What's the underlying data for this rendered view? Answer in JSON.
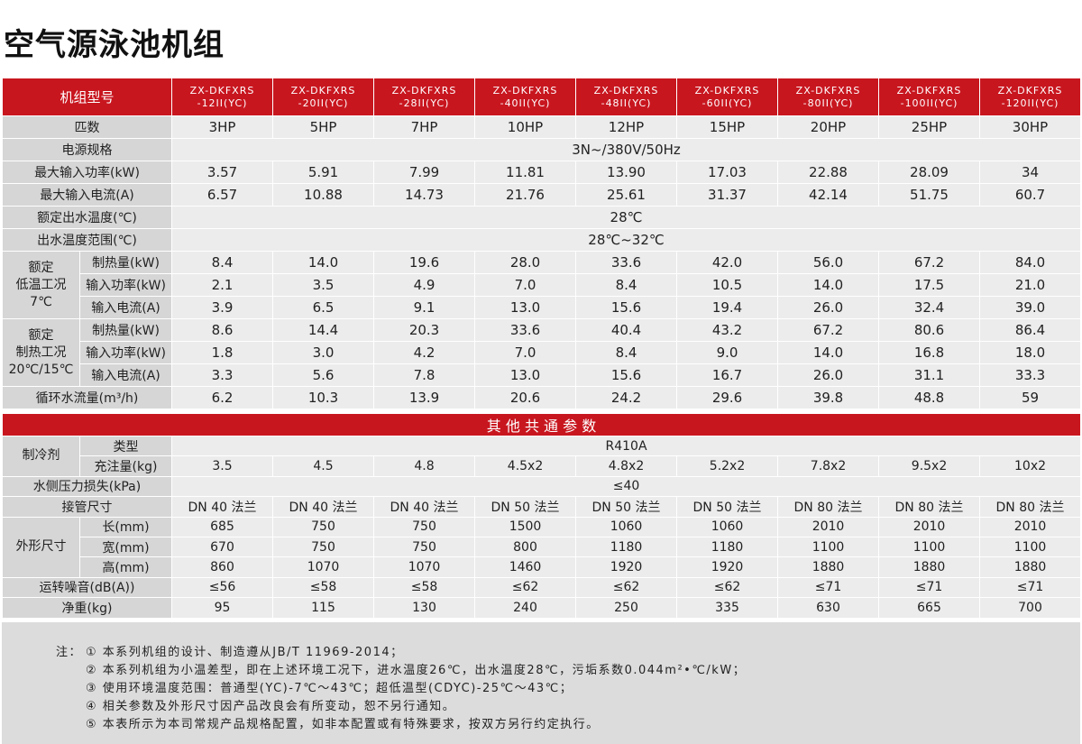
{
  "title": "空气源泳池机组",
  "table": {
    "header": {
      "label": "机组型号",
      "models": [
        [
          "ZX-DKFXRS",
          "-12II(YC)"
        ],
        [
          "ZX-DKFXRS",
          "-20II(YC)"
        ],
        [
          "ZX-DKFXRS",
          "-28II(YC)"
        ],
        [
          "ZX-DKFXRS",
          "-40II(YC)"
        ],
        [
          "ZX-DKFXRS",
          "-48II(YC)"
        ],
        [
          "ZX-DKFXRS",
          "-60II(YC)"
        ],
        [
          "ZX-DKFXRS",
          "-80II(YC)"
        ],
        [
          "ZX-DKFXRS",
          "-100II(YC)"
        ],
        [
          "ZX-DKFXRS",
          "-120II(YC)"
        ]
      ]
    },
    "rows": [
      {
        "label": "匹数",
        "values": [
          "3HP",
          "5HP",
          "7HP",
          "10HP",
          "12HP",
          "15HP",
          "20HP",
          "25HP",
          "30HP"
        ]
      },
      {
        "label": "电源规格",
        "value": "3N~/380V/50Hz"
      },
      {
        "label": "最大输入功率(kW)",
        "values": [
          "3.57",
          "5.91",
          "7.99",
          "11.81",
          "13.90",
          "17.03",
          "22.88",
          "28.09",
          "34"
        ]
      },
      {
        "label": "最大输入电流(A)",
        "values": [
          "6.57",
          "10.88",
          "14.73",
          "21.76",
          "25.61",
          "31.37",
          "42.14",
          "51.75",
          "60.7"
        ]
      },
      {
        "label": "额定出水温度(℃)",
        "value": "28℃"
      },
      {
        "label": "出水温度范围(℃)",
        "value": "28℃~32℃"
      },
      {
        "label": [
          "额定",
          "低温工况",
          "7℃"
        ],
        "rows": [
          {
            "label": "制热量(kW)",
            "values": [
              "8.4",
              "14.0",
              "19.6",
              "28.0",
              "33.6",
              "42.0",
              "56.0",
              "67.2",
              "84.0"
            ]
          },
          {
            "label": "输入功率(kW)",
            "values": [
              "2.1",
              "3.5",
              "4.9",
              "7.0",
              "8.4",
              "10.5",
              "14.0",
              "17.5",
              "21.0"
            ]
          },
          {
            "label": "输入电流(A)",
            "values": [
              "3.9",
              "6.5",
              "9.1",
              "13.0",
              "15.6",
              "19.4",
              "26.0",
              "32.4",
              "39.0"
            ]
          }
        ]
      },
      {
        "label": [
          "额定",
          "制热工况",
          "20℃/15℃"
        ],
        "rows": [
          {
            "label": "制热量(kW)",
            "values": [
              "8.6",
              "14.4",
              "20.3",
              "33.6",
              "40.4",
              "43.2",
              "67.2",
              "80.6",
              "86.4"
            ]
          },
          {
            "label": "输入功率(kW)",
            "values": [
              "1.8",
              "3.0",
              "4.2",
              "7.0",
              "8.4",
              "9.0",
              "14.0",
              "16.8",
              "18.0"
            ]
          },
          {
            "label": "输入电流(A)",
            "values": [
              "3.3",
              "5.6",
              "7.8",
              "13.0",
              "15.6",
              "16.7",
              "26.0",
              "31.1",
              "33.3"
            ]
          }
        ]
      },
      {
        "label": "循环水流量(m³/h)",
        "values": [
          "6.2",
          "10.3",
          "13.9",
          "20.6",
          "24.2",
          "29.6",
          "39.8",
          "48.8",
          "59"
        ]
      }
    ],
    "section_title": "其 他 共 通 参 数",
    "rows2": [
      {
        "label": [
          "制冷剂"
        ],
        "rows": [
          {
            "label": "类型",
            "value": "R410A"
          },
          {
            "label": "充注量(kg)",
            "values": [
              "3.5",
              "4.5",
              "4.8",
              "4.5x2",
              "4.8x2",
              "5.2x2",
              "7.8x2",
              "9.5x2",
              "10x2"
            ]
          }
        ]
      },
      {
        "label": "水侧压力损失(kPa)",
        "value": "≤40"
      },
      {
        "label": "接管尺寸",
        "values": [
          "DN 40 法兰",
          "DN 40 法兰",
          "DN 40 法兰",
          "DN 50 法兰",
          "DN 50 法兰",
          "DN 50 法兰",
          "DN 80 法兰",
          "DN 80 法兰",
          "DN 80 法兰"
        ]
      },
      {
        "label": [
          "外形尺寸"
        ],
        "rows": [
          {
            "label": "长(mm)",
            "values": [
              "685",
              "750",
              "750",
              "1500",
              "1060",
              "1060",
              "2010",
              "2010",
              "2010"
            ]
          },
          {
            "label": "宽(mm)",
            "values": [
              "670",
              "750",
              "750",
              "800",
              "1180",
              "1180",
              "1100",
              "1100",
              "1100"
            ]
          },
          {
            "label": "高(mm)",
            "values": [
              "860",
              "1070",
              "1070",
              "1460",
              "1920",
              "1920",
              "1880",
              "1880",
              "1880"
            ]
          }
        ]
      },
      {
        "label": "运转噪音(dB(A))",
        "values": [
          "≤56",
          "≤58",
          "≤58",
          "≤62",
          "≤62",
          "≤62",
          "≤71",
          "≤71",
          "≤71"
        ]
      },
      {
        "label": "净重(kg)",
        "values": [
          "95",
          "115",
          "130",
          "240",
          "250",
          "335",
          "630",
          "665",
          "700"
        ]
      }
    ]
  },
  "notes": {
    "label": "注：",
    "lines": [
      "① 本系列机组的设计、制造遵从JB/T 11969-2014；",
      "② 本系列机组为小温差型，即在上述环境工况下，进水温度26℃，出水温度28℃，污垢系数0.044m²•℃/kW；",
      "③ 使用环境温度范围：普通型(YC)-7℃～43℃；超低温型(CDYC)-25℃～43℃；",
      "④ 相关参数及外形尺寸因产品改良会有所变动，恕不另行通知。",
      "⑤ 本表所示为本司常规产品规格配置，如非本配置或有特殊要求，按双方另行约定执行。"
    ]
  }
}
